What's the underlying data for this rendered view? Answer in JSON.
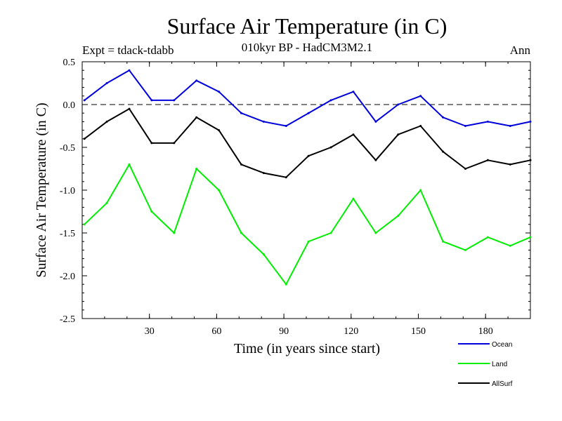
{
  "chart_data": {
    "type": "line",
    "title": "Surface Air Temperature (in C)",
    "subtitle": "010kyr BP - HadCM3M2.1",
    "left_label": "Expt = tdack-tdabb",
    "right_label": "Ann",
    "xlabel": "Time (in years since start)",
    "ylabel": "Surface Air Temperature (in C)",
    "xlim": [
      0,
      200
    ],
    "ylim": [
      -2.5,
      0.5
    ],
    "x_ticks": [
      30,
      60,
      90,
      120,
      150,
      180
    ],
    "x_tick_labels": [
      "30",
      "60",
      "90",
      "120",
      "150",
      "180"
    ],
    "y_ticks": [
      0.5,
      0.0,
      -0.5,
      -1.0,
      -1.5,
      -2.0,
      -2.5
    ],
    "y_tick_labels": [
      "0.5",
      "0.0",
      "-0.5",
      "-1.0",
      "-1.5",
      "-2.0",
      "-2.5"
    ],
    "reference_line": 0.0,
    "legend": [
      {
        "name": "Ocean",
        "color": "#0000dd"
      },
      {
        "name": "Land",
        "color": "#00ee00"
      },
      {
        "name": "AllSurf",
        "color": "#000000"
      }
    ],
    "legend_position": "bottom-right",
    "x": [
      1,
      11,
      21,
      31,
      41,
      51,
      61,
      71,
      81,
      91,
      101,
      111,
      121,
      131,
      141,
      151,
      161,
      171,
      181,
      191,
      200
    ],
    "series": [
      {
        "name": "Ocean",
        "color": "#0000dd",
        "values": [
          0.05,
          0.25,
          0.4,
          0.05,
          0.05,
          0.28,
          0.15,
          -0.1,
          -0.2,
          -0.25,
          -0.1,
          0.05,
          0.15,
          -0.2,
          0.0,
          0.1,
          -0.15,
          -0.25,
          -0.2,
          -0.25,
          -0.2
        ]
      },
      {
        "name": "Land",
        "color": "#00ee00",
        "values": [
          -1.4,
          -1.15,
          -0.7,
          -1.25,
          -1.5,
          -0.75,
          -1.0,
          -1.5,
          -1.75,
          -2.1,
          -1.6,
          -1.5,
          -1.1,
          -1.5,
          -1.3,
          -1.0,
          -1.6,
          -1.7,
          -1.55,
          -1.65,
          -1.55
        ]
      },
      {
        "name": "AllSurf",
        "color": "#000000",
        "values": [
          -0.4,
          -0.2,
          -0.05,
          -0.45,
          -0.45,
          -0.15,
          -0.3,
          -0.7,
          -0.8,
          -0.85,
          -0.6,
          -0.5,
          -0.35,
          -0.65,
          -0.35,
          -0.25,
          -0.55,
          -0.75,
          -0.65,
          -0.7,
          -0.65
        ]
      }
    ]
  }
}
